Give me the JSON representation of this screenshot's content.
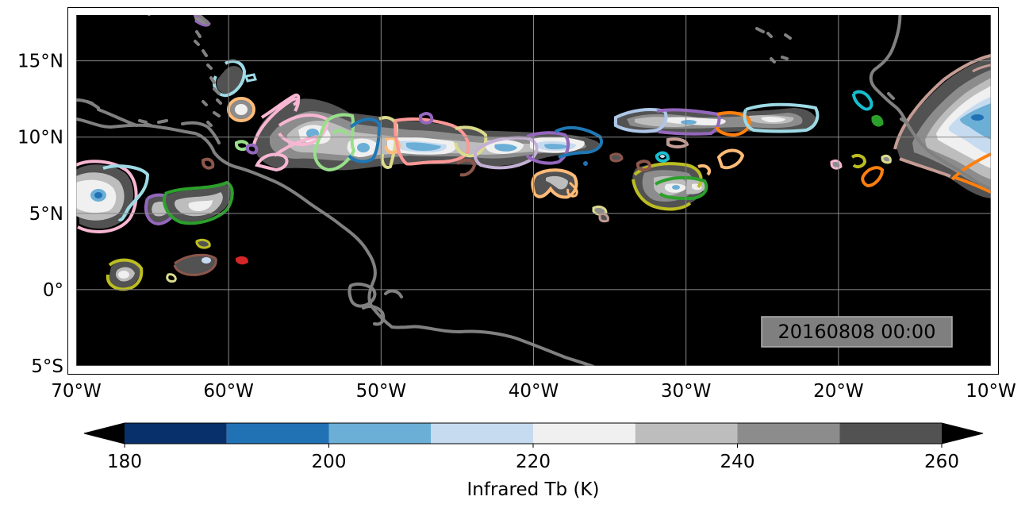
{
  "map": {
    "lon_range": [
      -70,
      -10
    ],
    "lat_range": [
      -5,
      18
    ],
    "lon_ticks": [
      {
        "value": -70,
        "label": "70°W"
      },
      {
        "value": -60,
        "label": "60°W"
      },
      {
        "value": -50,
        "label": "50°W"
      },
      {
        "value": -40,
        "label": "40°W"
      },
      {
        "value": -30,
        "label": "30°W"
      },
      {
        "value": -20,
        "label": "20°W"
      },
      {
        "value": -10,
        "label": "10°W"
      }
    ],
    "lat_ticks": [
      {
        "value": 15,
        "label": "15°N"
      },
      {
        "value": 10,
        "label": "10°N"
      },
      {
        "value": 5,
        "label": "5°N"
      },
      {
        "value": 0,
        "label": "0°"
      },
      {
        "value": -5,
        "label": "5°S"
      }
    ],
    "gridlines": true,
    "background_color": "#000000",
    "coastline_color": "#808080",
    "timestamp": "20160808 00:00"
  },
  "colorbar": {
    "label": "Infrared Tb (K)",
    "min": 180,
    "max": 260,
    "step": 10,
    "extend": "both",
    "tick_values": [
      180,
      200,
      220,
      240,
      260
    ],
    "tick_labels": [
      "180",
      "200",
      "220",
      "240",
      "260"
    ],
    "colors": [
      "#08306b",
      "#2171b5",
      "#6baed6",
      "#c6dbef",
      "#f0f0f0",
      "#bdbdbd",
      "#8c8c8c",
      "#525252"
    ],
    "under_color": "#000000",
    "over_color": "#000000"
  },
  "chart_data": {
    "type": "map",
    "title": "",
    "field": "Infrared Tb (K)",
    "time": "20160808 00:00",
    "cloud_systems": [
      {
        "lon": -67.8,
        "lat": 6.6,
        "outline": "#f7b6d2"
      },
      {
        "lon": -63.0,
        "lat": 5.6,
        "outline": "#9467bd"
      },
      {
        "lon": -61.2,
        "lat": 5.9,
        "outline": "#2ca02c"
      },
      {
        "lon": -59.3,
        "lat": 13.9,
        "outline": "#9edae5"
      },
      {
        "lon": -58.6,
        "lat": 11.8,
        "outline": "#ffbb78"
      },
      {
        "lon": -55.5,
        "lat": 10.3,
        "outline": "#f7b6d2"
      },
      {
        "lon": -53.0,
        "lat": 9.7,
        "outline": "#98df8a"
      },
      {
        "lon": -50.8,
        "lat": 9.8,
        "outline": "#1f77b4"
      },
      {
        "lon": -45.5,
        "lat": 9.6,
        "outline": "#ff9896"
      },
      {
        "lon": -41.5,
        "lat": 9.4,
        "outline": "#c5b0d5"
      },
      {
        "lon": -37.7,
        "lat": 10.0,
        "outline": "#1f77b4"
      },
      {
        "lon": -31.5,
        "lat": 10.8,
        "outline": "#9467bd"
      },
      {
        "lon": -30.5,
        "lat": 7.0,
        "outline": "#bcbd22"
      },
      {
        "lon": -23.7,
        "lat": 11.2,
        "outline": "#9edae5"
      },
      {
        "lon": -38.3,
        "lat": 6.7,
        "outline": "#ffbb78"
      },
      {
        "lon": -66.3,
        "lat": 1.0,
        "outline": "#bcbd22"
      },
      {
        "lon": -62.0,
        "lat": 1.7,
        "outline": "#8c564b"
      },
      {
        "lon": -58.8,
        "lat": 2.0,
        "outline": "#d62728"
      },
      {
        "lon": -18.3,
        "lat": 8.2,
        "outline": "#bcbd22"
      },
      {
        "lon": -17.5,
        "lat": 7.3,
        "outline": "#ff7f0e"
      },
      {
        "lon": -12.0,
        "lat": 10.6,
        "outline": "#c49c94"
      },
      {
        "lon": -12.0,
        "lat": 6.9,
        "outline": "#ff7f0e"
      }
    ]
  }
}
